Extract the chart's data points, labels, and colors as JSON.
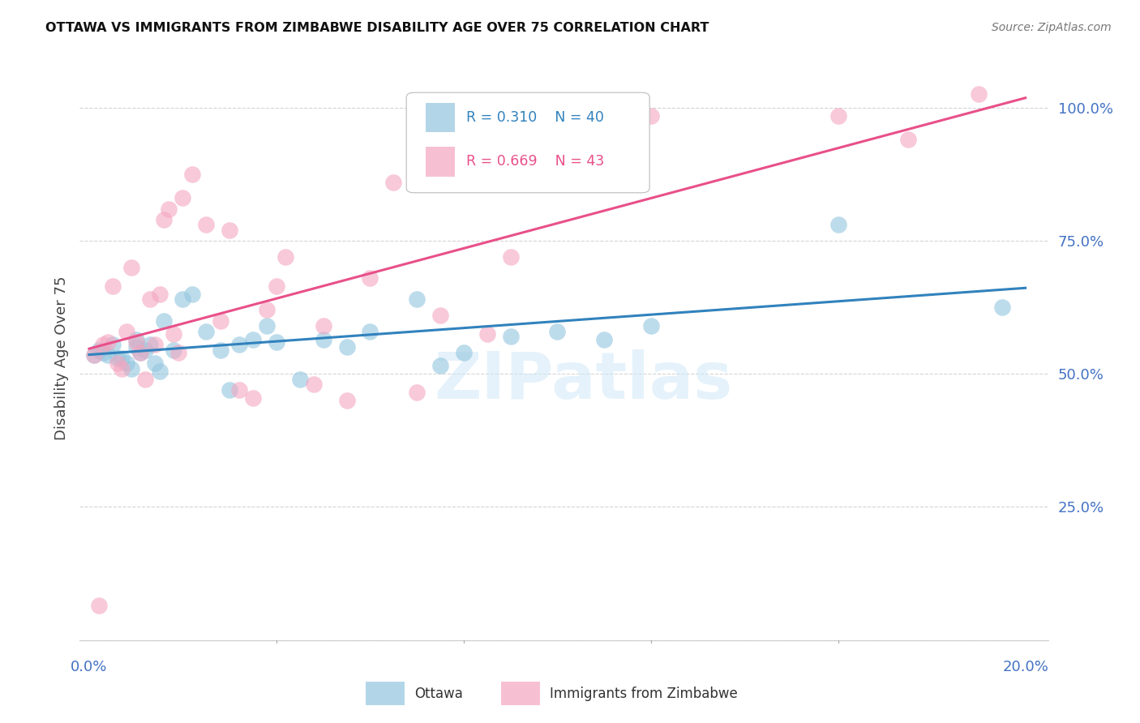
{
  "title": "OTTAWA VS IMMIGRANTS FROM ZIMBABWE DISABILITY AGE OVER 75 CORRELATION CHART",
  "source": "Source: ZipAtlas.com",
  "ylabel": "Disability Age Over 75",
  "yticks": [
    0.0,
    0.25,
    0.5,
    0.75,
    1.0
  ],
  "ytick_labels": [
    "",
    "25.0%",
    "50.0%",
    "75.0%",
    "100.0%"
  ],
  "xticks": [
    0.0,
    0.04,
    0.08,
    0.12,
    0.16,
    0.2
  ],
  "xtick_labels": [
    "0.0%",
    "",
    "",
    "",
    "",
    "20.0%"
  ],
  "xlim": [
    -0.002,
    0.205
  ],
  "ylim": [
    -0.02,
    1.08
  ],
  "watermark": "ZIPatlas",
  "ottawa_R": 0.31,
  "ottawa_N": 40,
  "zimbabwe_R": 0.669,
  "zimbabwe_N": 43,
  "ottawa_color": "#92c5de",
  "zimbabwe_color": "#f4a6c0",
  "ottawa_line_color": "#3182bd",
  "zimbabwe_line_color": "#e8508a",
  "ottawa_x": [
    0.001,
    0.002,
    0.003,
    0.004,
    0.005,
    0.006,
    0.007,
    0.008,
    0.009,
    0.01,
    0.01,
    0.011,
    0.012,
    0.013,
    0.014,
    0.015,
    0.016,
    0.018,
    0.02,
    0.022,
    0.025,
    0.028,
    0.03,
    0.032,
    0.035,
    0.038,
    0.04,
    0.045,
    0.05,
    0.055,
    0.06,
    0.07,
    0.075,
    0.08,
    0.09,
    0.1,
    0.11,
    0.12,
    0.16,
    0.195
  ],
  "ottawa_y": [
    0.535,
    0.545,
    0.54,
    0.535,
    0.555,
    0.53,
    0.53,
    0.52,
    0.51,
    0.55,
    0.565,
    0.54,
    0.545,
    0.555,
    0.52,
    0.505,
    0.6,
    0.545,
    0.64,
    0.65,
    0.58,
    0.545,
    0.47,
    0.555,
    0.565,
    0.59,
    0.56,
    0.49,
    0.565,
    0.55,
    0.58,
    0.64,
    0.515,
    0.54,
    0.57,
    0.58,
    0.565,
    0.59,
    0.78,
    0.625
  ],
  "zimbabwe_x": [
    0.001,
    0.003,
    0.004,
    0.005,
    0.006,
    0.007,
    0.008,
    0.009,
    0.01,
    0.011,
    0.012,
    0.013,
    0.014,
    0.015,
    0.016,
    0.017,
    0.018,
    0.019,
    0.02,
    0.022,
    0.025,
    0.028,
    0.03,
    0.032,
    0.035,
    0.038,
    0.04,
    0.042,
    0.048,
    0.05,
    0.055,
    0.06,
    0.065,
    0.07,
    0.075,
    0.085,
    0.09,
    0.1,
    0.12,
    0.16,
    0.175,
    0.19,
    0.002
  ],
  "zimbabwe_y": [
    0.535,
    0.555,
    0.56,
    0.665,
    0.52,
    0.51,
    0.58,
    0.7,
    0.56,
    0.54,
    0.49,
    0.64,
    0.555,
    0.65,
    0.79,
    0.81,
    0.575,
    0.54,
    0.83,
    0.875,
    0.78,
    0.6,
    0.77,
    0.47,
    0.455,
    0.62,
    0.665,
    0.72,
    0.48,
    0.59,
    0.45,
    0.68,
    0.86,
    0.465,
    0.61,
    0.575,
    0.72,
    0.89,
    0.985,
    0.985,
    0.94,
    1.025,
    0.065
  ],
  "legend_entries": [
    "Ottawa",
    "Immigrants from Zimbabwe"
  ],
  "background_color": "#ffffff",
  "grid_color": "#d4d4d4"
}
